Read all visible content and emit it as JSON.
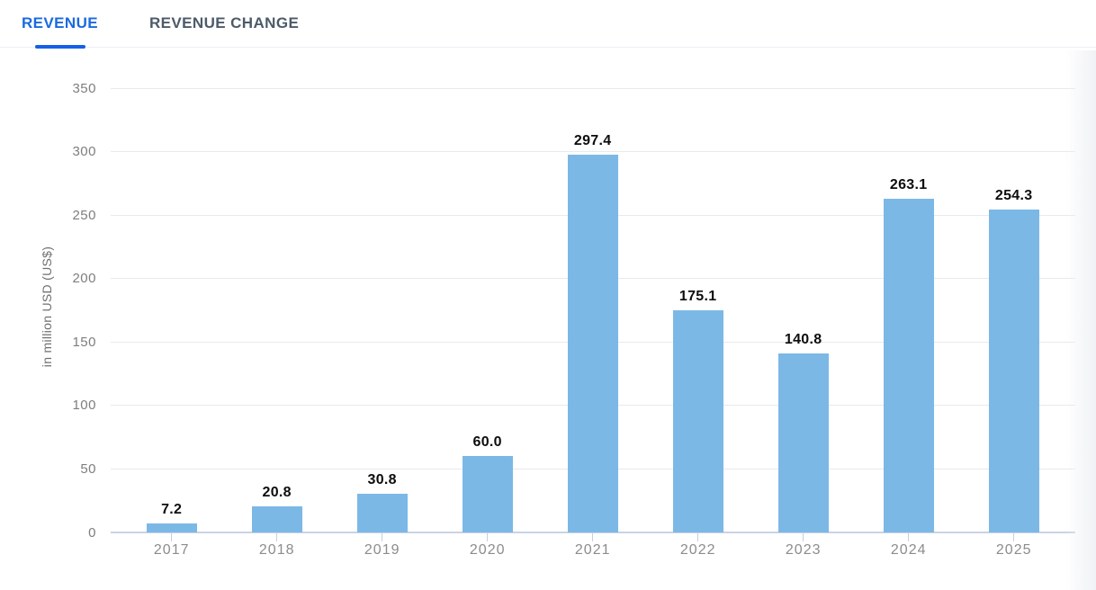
{
  "tabs": {
    "items": [
      {
        "label": "REVENUE",
        "active": true
      },
      {
        "label": "REVENUE CHANGE",
        "active": false
      }
    ]
  },
  "chart_data": {
    "type": "bar",
    "categories": [
      "2017",
      "2018",
      "2019",
      "2020",
      "2021",
      "2022",
      "2023",
      "2024",
      "2025"
    ],
    "values": [
      7.2,
      20.8,
      30.8,
      60.0,
      297.4,
      175.1,
      140.8,
      263.1,
      254.3
    ],
    "value_labels": [
      "7.2",
      "20.8",
      "30.8",
      "60.0",
      "297.4",
      "175.1",
      "140.8",
      "263.1",
      "254.3"
    ],
    "title": "",
    "xlabel": "",
    "ylabel": "in million USD (US$)",
    "yticks": [
      0,
      50,
      100,
      150,
      200,
      250,
      300,
      350
    ],
    "ylim": [
      0,
      350
    ],
    "grid": true,
    "legend": "none",
    "bar_color": "#7cb8e6"
  },
  "colors": {
    "accent_blue": "#1a6ae0",
    "tab_underline": "#1560e6",
    "inactive_tab": "#4d5a68",
    "bar": "#7cb8e6",
    "gridline": "#e9e9ee",
    "baseline": "#c9d3e5",
    "axis_text": "#7e7e7e",
    "year_text": "#8c8c8c",
    "value_text": "#0d0d0d"
  }
}
